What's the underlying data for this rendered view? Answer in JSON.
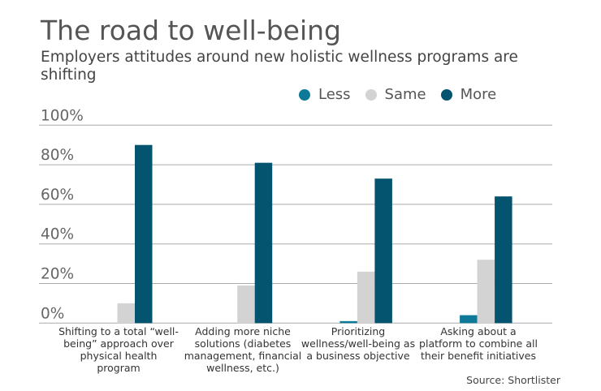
{
  "chart_data": {
    "type": "bar",
    "title": "The road to well-being",
    "subtitle": "Employers attitudes around new holistic wellness programs are shifting",
    "categories": [
      "Shifting to a total “well-being” approach over physical health program",
      "Adding more niche solutions (diabetes management, financial wellness, etc.)",
      "Prioritizing wellness/well-being as a business objective",
      "Asking about a platform to combine all their benefit initiatives"
    ],
    "series": [
      {
        "name": "Less",
        "color": "#0e7a98",
        "values": [
          0,
          0,
          1,
          4
        ]
      },
      {
        "name": "Same",
        "color": "#d3d3d3",
        "values": [
          10,
          19,
          26,
          32
        ]
      },
      {
        "name": "More",
        "color": "#05546f",
        "values": [
          90,
          81,
          73,
          64
        ]
      }
    ],
    "yticks": [
      "0%",
      "20%",
      "40%",
      "60%",
      "80%",
      "100%"
    ],
    "ylim": [
      0,
      100
    ],
    "grid": true,
    "legend_position": "top-right",
    "source": "Source: Shortlister"
  }
}
